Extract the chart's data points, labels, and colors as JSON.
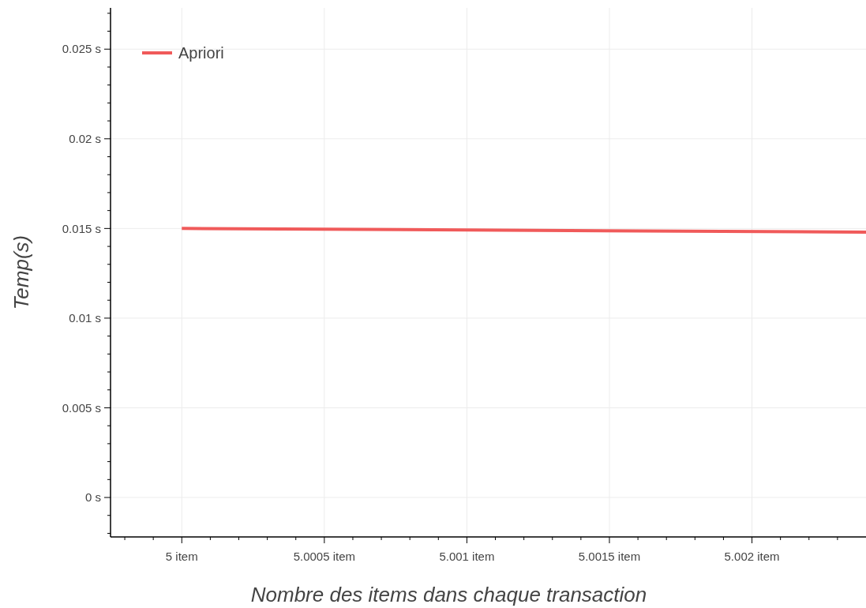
{
  "chart_data": {
    "type": "line",
    "xlabel": "Nombre des items dans chaque transaction",
    "ylabel": "Temp(s)",
    "x": [
      5,
      5.0024
    ],
    "series": [
      {
        "name": "Apriori",
        "color": "#f05a5a",
        "values": [
          0.015,
          0.0148
        ]
      }
    ],
    "xlim": [
      4.99975,
      5.0024
    ],
    "xticks": [
      {
        "value": 4.9998,
        "label": null
      },
      {
        "value": 4.9999,
        "label": null
      },
      {
        "value": 5,
        "label": "5 item"
      },
      {
        "value": 5.0001,
        "label": null
      },
      {
        "value": 5.0002,
        "label": null
      },
      {
        "value": 5.0003,
        "label": null
      },
      {
        "value": 5.0004,
        "label": null
      },
      {
        "value": 5.0005,
        "label": "5.0005 item"
      },
      {
        "value": 5.0006,
        "label": null
      },
      {
        "value": 5.0007,
        "label": null
      },
      {
        "value": 5.0008,
        "label": null
      },
      {
        "value": 5.0009,
        "label": null
      },
      {
        "value": 5.001,
        "label": "5.001 item"
      },
      {
        "value": 5.0011,
        "label": null
      },
      {
        "value": 5.0012,
        "label": null
      },
      {
        "value": 5.0013,
        "label": null
      },
      {
        "value": 5.0014,
        "label": null
      },
      {
        "value": 5.0015,
        "label": "5.0015 item"
      },
      {
        "value": 5.0016,
        "label": null
      },
      {
        "value": 5.0017,
        "label": null
      },
      {
        "value": 5.0018,
        "label": null
      },
      {
        "value": 5.0019,
        "label": null
      },
      {
        "value": 5.002,
        "label": "5.002 item"
      },
      {
        "value": 5.0021,
        "label": null
      },
      {
        "value": 5.0022,
        "label": null
      },
      {
        "value": 5.0023,
        "label": null
      }
    ],
    "ylim": [
      -0.0022,
      0.0273
    ],
    "yticks": [
      {
        "value": -0.002,
        "label": null
      },
      {
        "value": -0.001,
        "label": null
      },
      {
        "value": 0,
        "label": "0 s"
      },
      {
        "value": 0.001,
        "label": null
      },
      {
        "value": 0.002,
        "label": null
      },
      {
        "value": 0.003,
        "label": null
      },
      {
        "value": 0.004,
        "label": null
      },
      {
        "value": 0.005,
        "label": "0.005 s"
      },
      {
        "value": 0.006,
        "label": null
      },
      {
        "value": 0.007,
        "label": null
      },
      {
        "value": 0.008,
        "label": null
      },
      {
        "value": 0.009,
        "label": null
      },
      {
        "value": 0.01,
        "label": "0.01 s"
      },
      {
        "value": 0.011,
        "label": null
      },
      {
        "value": 0.012,
        "label": null
      },
      {
        "value": 0.013,
        "label": null
      },
      {
        "value": 0.014,
        "label": null
      },
      {
        "value": 0.015,
        "label": "0.015 s"
      },
      {
        "value": 0.016,
        "label": null
      },
      {
        "value": 0.017,
        "label": null
      },
      {
        "value": 0.018,
        "label": null
      },
      {
        "value": 0.019,
        "label": null
      },
      {
        "value": 0.02,
        "label": "0.02 s"
      },
      {
        "value": 0.021,
        "label": null
      },
      {
        "value": 0.022,
        "label": null
      },
      {
        "value": 0.023,
        "label": null
      },
      {
        "value": 0.024,
        "label": null
      },
      {
        "value": 0.025,
        "label": "0.025 s"
      },
      {
        "value": 0.026,
        "label": null
      },
      {
        "value": 0.027,
        "label": null
      }
    ],
    "grid": true,
    "legend": "top left",
    "marker": "none",
    "line_style": "solid"
  }
}
